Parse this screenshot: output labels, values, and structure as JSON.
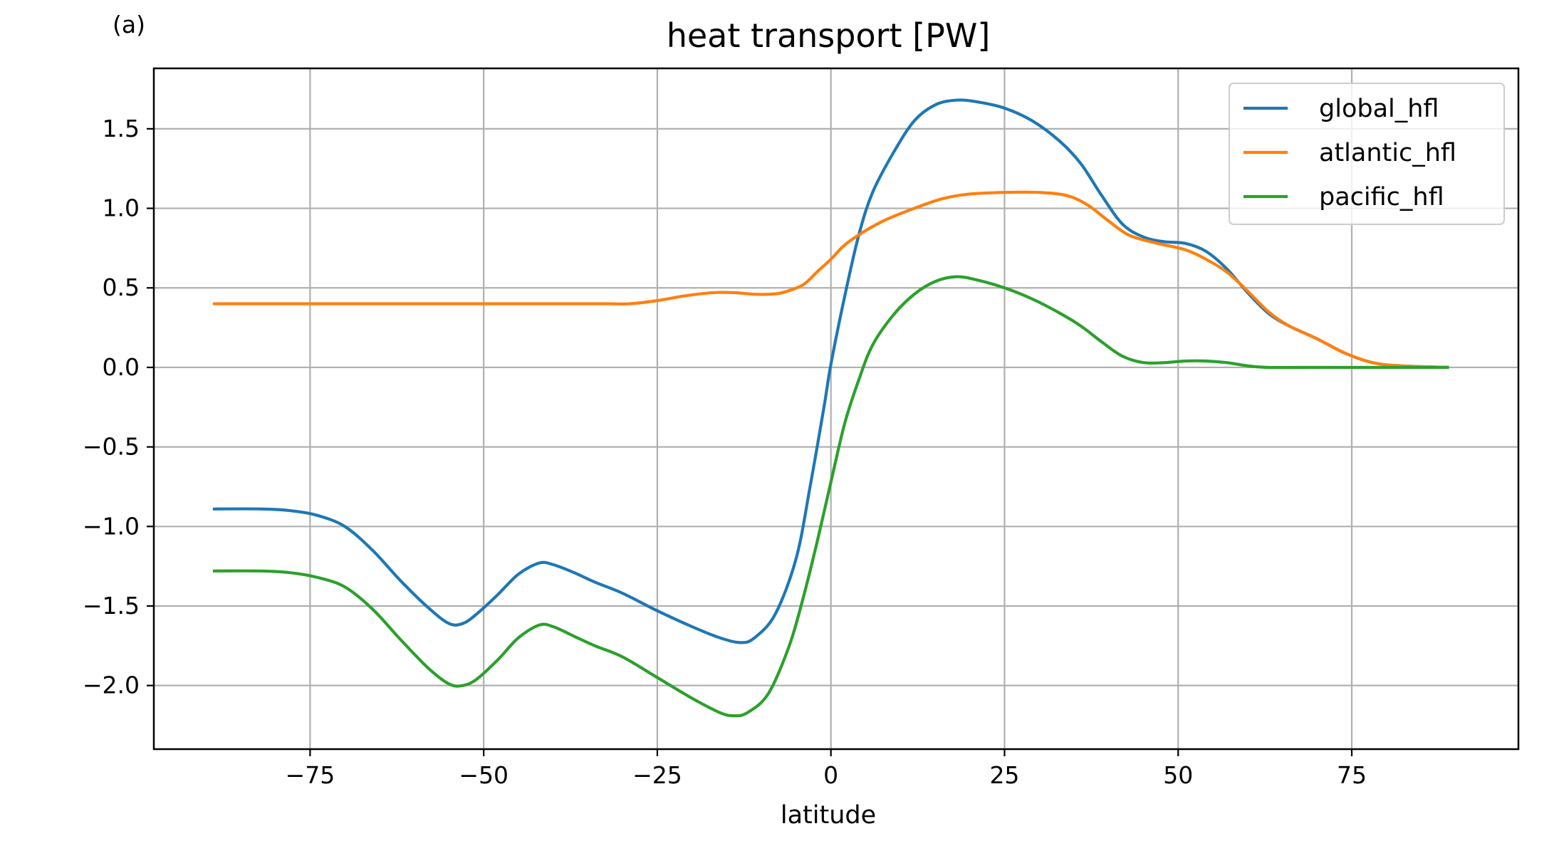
{
  "panel_label": "(a)",
  "chart_data": {
    "type": "line",
    "title": "heat transport [PW]",
    "xlabel": "latitude",
    "ylabel": "",
    "xlim": [
      -97.5,
      99
    ],
    "ylim": [
      -2.4,
      1.88
    ],
    "xticks": [
      -75,
      -50,
      -25,
      0,
      25,
      50,
      75
    ],
    "xtick_labels": [
      "−75",
      "−50",
      "−25",
      "0",
      "25",
      "50",
      "75"
    ],
    "yticks": [
      -2.0,
      -1.5,
      -1.0,
      -0.5,
      0.0,
      0.5,
      1.0,
      1.5
    ],
    "ytick_labels": [
      "−2.0",
      "−1.5",
      "−1.0",
      "−0.5",
      "0.0",
      "0.5",
      "1.0",
      "1.5"
    ],
    "grid": true,
    "legend_position": "top-right",
    "series": [
      {
        "name": "global_hfl",
        "color": "#1f77b4",
        "points": [
          [
            -89,
            -0.89
          ],
          [
            -82,
            -0.89
          ],
          [
            -78,
            -0.9
          ],
          [
            -74,
            -0.93
          ],
          [
            -70,
            -1.0
          ],
          [
            -66,
            -1.15
          ],
          [
            -62,
            -1.34
          ],
          [
            -58,
            -1.51
          ],
          [
            -55,
            -1.61
          ],
          [
            -53,
            -1.61
          ],
          [
            -51,
            -1.55
          ],
          [
            -48,
            -1.43
          ],
          [
            -45,
            -1.3
          ],
          [
            -42,
            -1.23
          ],
          [
            -40,
            -1.24
          ],
          [
            -37,
            -1.29
          ],
          [
            -34,
            -1.35
          ],
          [
            -30,
            -1.42
          ],
          [
            -25,
            -1.53
          ],
          [
            -20,
            -1.63
          ],
          [
            -16,
            -1.7
          ],
          [
            -13,
            -1.73
          ],
          [
            -11,
            -1.7
          ],
          [
            -8,
            -1.55
          ],
          [
            -5,
            -1.2
          ],
          [
            -3,
            -0.75
          ],
          [
            -1,
            -0.25
          ],
          [
            0,
            0.02
          ],
          [
            2,
            0.45
          ],
          [
            4,
            0.83
          ],
          [
            6,
            1.1
          ],
          [
            9,
            1.35
          ],
          [
            12,
            1.55
          ],
          [
            15,
            1.65
          ],
          [
            18,
            1.68
          ],
          [
            21,
            1.67
          ],
          [
            25,
            1.63
          ],
          [
            29,
            1.55
          ],
          [
            33,
            1.42
          ],
          [
            36,
            1.28
          ],
          [
            39,
            1.08
          ],
          [
            42,
            0.9
          ],
          [
            45,
            0.82
          ],
          [
            48,
            0.79
          ],
          [
            51,
            0.78
          ],
          [
            54,
            0.73
          ],
          [
            57,
            0.62
          ],
          [
            60,
            0.47
          ],
          [
            63,
            0.34
          ],
          [
            66,
            0.26
          ],
          [
            70,
            0.18
          ],
          [
            74,
            0.09
          ],
          [
            78,
            0.03
          ],
          [
            82,
            0.01
          ],
          [
            89,
            0.0
          ]
        ]
      },
      {
        "name": "atlantic_hfl",
        "color": "#ff7f0e",
        "points": [
          [
            -89,
            0.4
          ],
          [
            -80,
            0.4
          ],
          [
            -70,
            0.4
          ],
          [
            -60,
            0.4
          ],
          [
            -50,
            0.4
          ],
          [
            -40,
            0.4
          ],
          [
            -32,
            0.4
          ],
          [
            -29,
            0.4
          ],
          [
            -25,
            0.42
          ],
          [
            -21,
            0.45
          ],
          [
            -17,
            0.47
          ],
          [
            -14,
            0.47
          ],
          [
            -11,
            0.46
          ],
          [
            -9,
            0.46
          ],
          [
            -7,
            0.47
          ],
          [
            -4,
            0.52
          ],
          [
            -2,
            0.6
          ],
          [
            0,
            0.68
          ],
          [
            2,
            0.77
          ],
          [
            5,
            0.86
          ],
          [
            8,
            0.93
          ],
          [
            12,
            1.0
          ],
          [
            16,
            1.06
          ],
          [
            20,
            1.09
          ],
          [
            25,
            1.1
          ],
          [
            30,
            1.1
          ],
          [
            34,
            1.08
          ],
          [
            37,
            1.02
          ],
          [
            40,
            0.92
          ],
          [
            43,
            0.83
          ],
          [
            47,
            0.78
          ],
          [
            51,
            0.74
          ],
          [
            54,
            0.68
          ],
          [
            57,
            0.6
          ],
          [
            60,
            0.48
          ],
          [
            63,
            0.35
          ],
          [
            66,
            0.26
          ],
          [
            70,
            0.18
          ],
          [
            74,
            0.09
          ],
          [
            78,
            0.03
          ],
          [
            82,
            0.01
          ],
          [
            89,
            0.0
          ]
        ]
      },
      {
        "name": "pacific_hfl",
        "color": "#2ca02c",
        "points": [
          [
            -89,
            -1.28
          ],
          [
            -82,
            -1.28
          ],
          [
            -78,
            -1.29
          ],
          [
            -74,
            -1.32
          ],
          [
            -70,
            -1.38
          ],
          [
            -66,
            -1.52
          ],
          [
            -62,
            -1.71
          ],
          [
            -58,
            -1.89
          ],
          [
            -55,
            -1.99
          ],
          [
            -53,
            -2.0
          ],
          [
            -51,
            -1.96
          ],
          [
            -48,
            -1.84
          ],
          [
            -45,
            -1.7
          ],
          [
            -42,
            -1.62
          ],
          [
            -40,
            -1.63
          ],
          [
            -37,
            -1.69
          ],
          [
            -34,
            -1.75
          ],
          [
            -30,
            -1.82
          ],
          [
            -25,
            -1.95
          ],
          [
            -20,
            -2.08
          ],
          [
            -16,
            -2.17
          ],
          [
            -14,
            -2.19
          ],
          [
            -12,
            -2.17
          ],
          [
            -9,
            -2.05
          ],
          [
            -6,
            -1.75
          ],
          [
            -4,
            -1.45
          ],
          [
            -2,
            -1.1
          ],
          [
            0,
            -0.72
          ],
          [
            2,
            -0.35
          ],
          [
            4,
            -0.08
          ],
          [
            6,
            0.14
          ],
          [
            9,
            0.33
          ],
          [
            12,
            0.46
          ],
          [
            15,
            0.54
          ],
          [
            18,
            0.57
          ],
          [
            21,
            0.55
          ],
          [
            25,
            0.5
          ],
          [
            29,
            0.43
          ],
          [
            33,
            0.34
          ],
          [
            36,
            0.26
          ],
          [
            39,
            0.16
          ],
          [
            42,
            0.07
          ],
          [
            45,
            0.03
          ],
          [
            48,
            0.03
          ],
          [
            51,
            0.04
          ],
          [
            54,
            0.04
          ],
          [
            57,
            0.03
          ],
          [
            60,
            0.01
          ],
          [
            63,
            0.0
          ],
          [
            70,
            0.0
          ],
          [
            80,
            0.0
          ],
          [
            89,
            0.0
          ]
        ]
      }
    ]
  }
}
